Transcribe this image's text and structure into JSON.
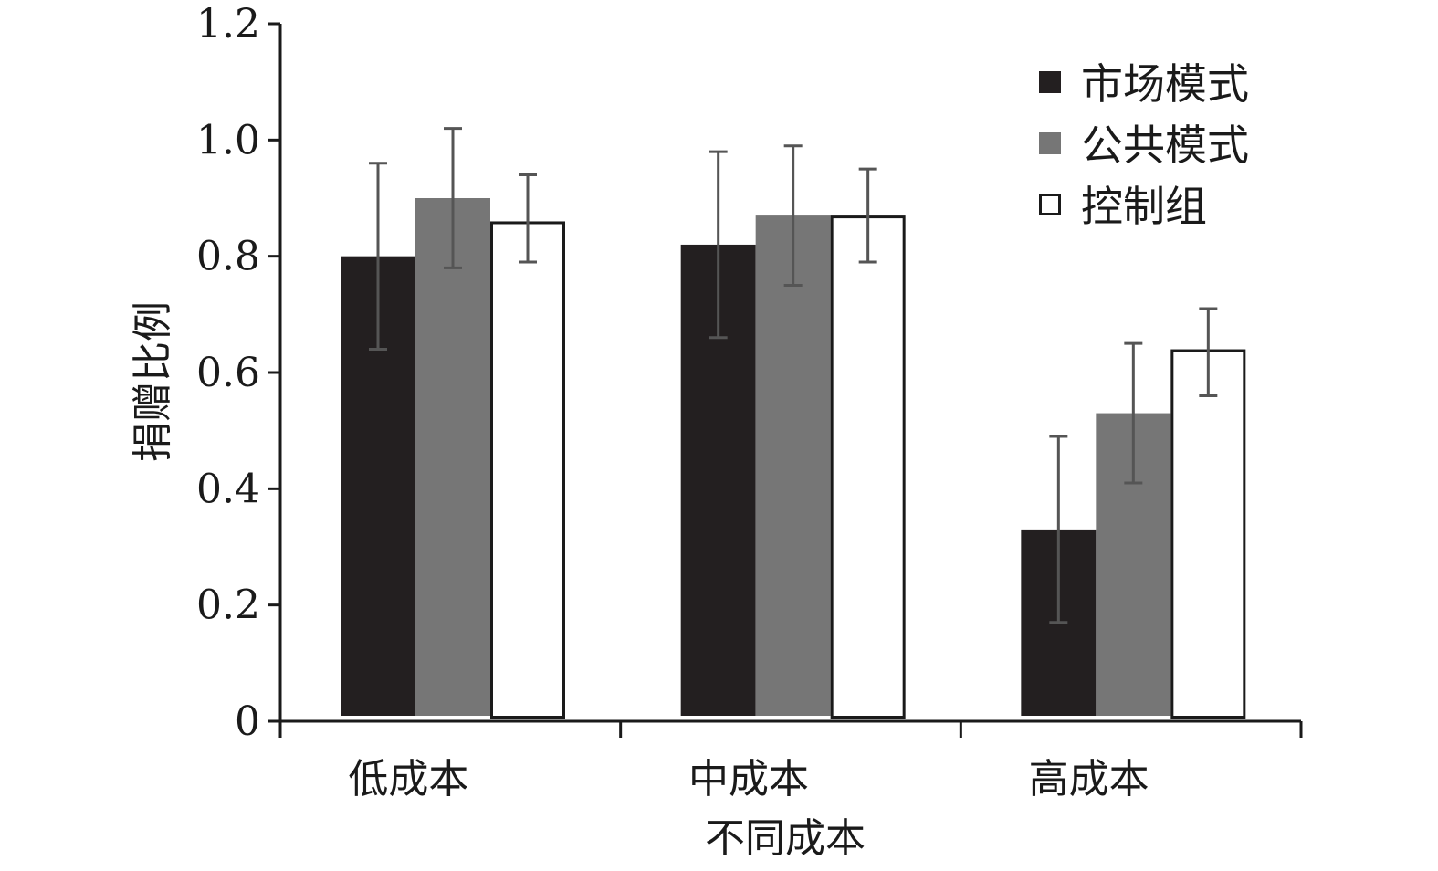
{
  "chart_data": {
    "type": "bar",
    "title": "",
    "xlabel": "不同成本",
    "ylabel": "捐赠比例",
    "categories": [
      "低成本",
      "中成本",
      "高成本"
    ],
    "ylim": [
      0,
      1.2
    ],
    "yticks": [
      0,
      0.2,
      0.4,
      0.6,
      0.8,
      1.0,
      1.2
    ],
    "ytick_labels": [
      "0",
      "0.2",
      "0.4",
      "0.6",
      "0.8",
      "1.0",
      "1.2"
    ],
    "legend_position": "top-right",
    "grid": false,
    "series": [
      {
        "name": "市场模式",
        "color": "#231f20",
        "values": [
          0.8,
          0.82,
          0.33
        ],
        "error_low": [
          0.64,
          0.66,
          0.17
        ],
        "error_high": [
          0.96,
          0.98,
          0.49
        ]
      },
      {
        "name": "公共模式",
        "color": "#767676",
        "values": [
          0.9,
          0.87,
          0.53
        ],
        "error_low": [
          0.78,
          0.75,
          0.41
        ],
        "error_high": [
          1.02,
          0.99,
          0.65
        ]
      },
      {
        "name": "控制组",
        "color": "#ffffff",
        "values": [
          0.86,
          0.87,
          0.64
        ],
        "error_low": [
          0.79,
          0.79,
          0.56
        ],
        "error_high": [
          0.94,
          0.95,
          0.71
        ]
      }
    ]
  }
}
